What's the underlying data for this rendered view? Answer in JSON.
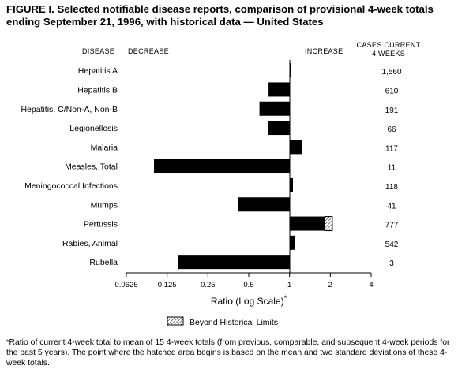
{
  "title": "FIGURE I. Selected notifiable disease reports, comparison of provisional 4-week totals ending September 21, 1996, with historical data — United States",
  "headers": {
    "disease": "DISEASE",
    "decrease": "DECREASE",
    "increase": "INCREASE",
    "cases_line1": "CASES CURRENT",
    "cases_line2": "4 WEEKS"
  },
  "xaxis": {
    "label": "Ratio (Log Scale)",
    "label_marker": "*"
  },
  "legend": {
    "label": "Beyond Historical Limits"
  },
  "footnote": {
    "marker": "*",
    "text": "Ratio of current 4-week total to mean of 15 4-week totals (from previous, comparable, and subsequent 4-week periods for the past 5 years). The point where the hatched area begins is based on the mean and two standard deviations of these 4-week totals."
  },
  "chart_data": {
    "type": "bar",
    "orientation": "horizontal",
    "scale": "log2",
    "baseline": 1,
    "xlim": [
      0.0625,
      4
    ],
    "xticks": [
      0.0625,
      0.125,
      0.25,
      0.5,
      1,
      2,
      4
    ],
    "xtick_labels": [
      "0.0625",
      "0.125",
      "0.25",
      "0.5",
      "1",
      "2",
      "4"
    ],
    "categories": [
      "Hepatitis A",
      "Hepatitis B",
      "Hepatitis, C/Non-A, Non-B",
      "Legionellosis",
      "Malaria",
      "Measles, Total",
      "Meningococcal Infections",
      "Mumps",
      "Pertussis",
      "Rabies, Animal",
      "Rubella"
    ],
    "ratios": [
      1.03,
      0.7,
      0.6,
      0.69,
      1.23,
      0.1,
      1.06,
      0.42,
      2.07,
      1.09,
      0.15
    ],
    "historical_limit": [
      null,
      null,
      null,
      null,
      null,
      null,
      null,
      null,
      1.82,
      null,
      null
    ],
    "cases": [
      "1,560",
      "610",
      "191",
      "66",
      "117",
      "11",
      "118",
      "41",
      "777",
      "542",
      "3"
    ]
  }
}
